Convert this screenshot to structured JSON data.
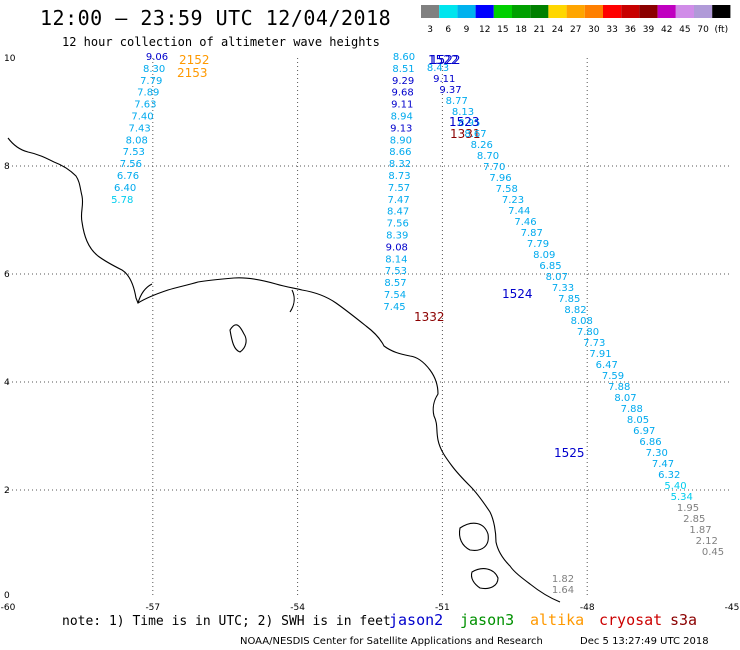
{
  "header": {
    "title": "12:00 – 23:59 UTC 12/04/2018",
    "subtitle": "12 hour collection of altimeter wave heights"
  },
  "colorbar": {
    "labels": [
      "3",
      "6",
      "9",
      "12",
      "15",
      "18",
      "21",
      "24",
      "27",
      "30",
      "33",
      "36",
      "39",
      "42",
      "45",
      "70",
      "(ft)"
    ],
    "colors": [
      "#808080",
      "#00e5ee",
      "#00b2ee",
      "#0000ff",
      "#00d000",
      "#00a000",
      "#008000",
      "#ffd700",
      "#ffa500",
      "#ff7f00",
      "#ff0000",
      "#c80000",
      "#8b0000",
      "#c000c0",
      "#d08ce8",
      "#b09ad8",
      "#000000"
    ]
  },
  "map": {
    "lon_range": [
      -60,
      -45
    ],
    "lat_range": [
      0,
      10
    ],
    "x_ticks": [
      "-60",
      "-57",
      "-54",
      "-51",
      "-48",
      "-45"
    ],
    "y_ticks": [
      "10",
      "8",
      "6",
      "4",
      "2",
      "0"
    ],
    "grid": "dotted"
  },
  "satellite_colors": {
    "jason2": "#0000cc",
    "jason3": "#009000",
    "altika": "#ff9900",
    "cryosat": "#cc0000",
    "s3a": "#8b0000"
  },
  "tracks": [
    {
      "labels": [
        {
          "text": "2152",
          "color": "#ff9900"
        },
        {
          "text": "2153",
          "color": "#ff9900"
        }
      ],
      "values": [
        {
          "v": "9.06",
          "c": "#0000cc"
        },
        {
          "v": "8.30",
          "c": "#00aaee"
        },
        {
          "v": "7.79",
          "c": "#00aaee"
        },
        {
          "v": "7.89",
          "c": "#00aaee"
        },
        {
          "v": "7.63",
          "c": "#00aaee"
        },
        {
          "v": "7.40",
          "c": "#00aaee"
        },
        {
          "v": "7.43",
          "c": "#00aaee"
        },
        {
          "v": "8.08",
          "c": "#00aaee"
        },
        {
          "v": "7.53",
          "c": "#00aaee"
        },
        {
          "v": "7.56",
          "c": "#00aaee"
        },
        {
          "v": "6.76",
          "c": "#00aaee"
        },
        {
          "v": "6.40",
          "c": "#00aaee"
        },
        {
          "v": "5.78",
          "c": "#00ccee"
        }
      ]
    },
    {
      "labels": [
        {
          "text": "1522",
          "color": "#0000cc"
        },
        {
          "text": "1331",
          "color": "#8b0000"
        },
        {
          "text": "1332",
          "color": "#8b0000"
        }
      ],
      "values": [
        {
          "v": "8.60",
          "c": "#00aaee"
        },
        {
          "v": "8.51",
          "c": "#00aaee"
        },
        {
          "v": "9.29",
          "c": "#0000cc"
        },
        {
          "v": "9.68",
          "c": "#0000cc"
        },
        {
          "v": "9.11",
          "c": "#0000cc"
        },
        {
          "v": "8.94",
          "c": "#00aaee"
        },
        {
          "v": "9.13",
          "c": "#0000cc"
        },
        {
          "v": "8.90",
          "c": "#00aaee"
        },
        {
          "v": "8.66",
          "c": "#00aaee"
        },
        {
          "v": "8.32",
          "c": "#00aaee"
        },
        {
          "v": "8.73",
          "c": "#00aaee"
        },
        {
          "v": "7.57",
          "c": "#00aaee"
        },
        {
          "v": "7.47",
          "c": "#00aaee"
        },
        {
          "v": "8.47",
          "c": "#00aaee"
        },
        {
          "v": "7.56",
          "c": "#00aaee"
        },
        {
          "v": "8.39",
          "c": "#00aaee"
        },
        {
          "v": "9.08",
          "c": "#0000cc"
        },
        {
          "v": "8.14",
          "c": "#00aaee"
        },
        {
          "v": "7.53",
          "c": "#00aaee"
        },
        {
          "v": "8.57",
          "c": "#00aaee"
        },
        {
          "v": "7.54",
          "c": "#00aaee"
        },
        {
          "v": "7.45",
          "c": "#00aaee"
        }
      ]
    },
    {
      "labels": [
        {
          "text": "1522",
          "color": "#0000cc"
        },
        {
          "text": "1523",
          "color": "#0000cc"
        },
        {
          "text": "1524",
          "color": "#0000cc"
        },
        {
          "text": "1525",
          "color": "#0000cc"
        }
      ],
      "values": [
        {
          "v": "8.43",
          "c": "#00aaee"
        },
        {
          "v": "9.11",
          "c": "#0000cc"
        },
        {
          "v": "9.37",
          "c": "#0000cc"
        },
        {
          "v": "8.77",
          "c": "#00aaee"
        },
        {
          "v": "8.13",
          "c": "#00aaee"
        },
        {
          "v": "8.95",
          "c": "#00aaee"
        },
        {
          "v": "8.67",
          "c": "#00aaee"
        },
        {
          "v": "8.26",
          "c": "#00aaee"
        },
        {
          "v": "8.70",
          "c": "#00aaee"
        },
        {
          "v": "7.70",
          "c": "#00aaee"
        },
        {
          "v": "7.96",
          "c": "#00aaee"
        },
        {
          "v": "7.58",
          "c": "#00aaee"
        },
        {
          "v": "7.23",
          "c": "#00aaee"
        },
        {
          "v": "7.44",
          "c": "#00aaee"
        },
        {
          "v": "7.46",
          "c": "#00aaee"
        },
        {
          "v": "7.87",
          "c": "#00aaee"
        },
        {
          "v": "7.79",
          "c": "#00aaee"
        },
        {
          "v": "8.09",
          "c": "#00aaee"
        },
        {
          "v": "6.85",
          "c": "#00aaee"
        },
        {
          "v": "8.07",
          "c": "#00aaee"
        },
        {
          "v": "7.33",
          "c": "#00aaee"
        },
        {
          "v": "7.85",
          "c": "#00aaee"
        },
        {
          "v": "8.82",
          "c": "#00aaee"
        },
        {
          "v": "8.08",
          "c": "#00aaee"
        },
        {
          "v": "7.80",
          "c": "#00aaee"
        },
        {
          "v": "7.73",
          "c": "#00aaee"
        },
        {
          "v": "7.91",
          "c": "#00aaee"
        },
        {
          "v": "6.47",
          "c": "#00aaee"
        },
        {
          "v": "7.59",
          "c": "#00aaee"
        },
        {
          "v": "7.88",
          "c": "#00aaee"
        },
        {
          "v": "8.07",
          "c": "#00aaee"
        },
        {
          "v": "7.88",
          "c": "#00aaee"
        },
        {
          "v": "8.05",
          "c": "#00aaee"
        },
        {
          "v": "6.97",
          "c": "#00aaee"
        },
        {
          "v": "6.86",
          "c": "#00aaee"
        },
        {
          "v": "7.30",
          "c": "#00aaee"
        },
        {
          "v": "7.47",
          "c": "#00aaee"
        },
        {
          "v": "6.32",
          "c": "#00aaee"
        },
        {
          "v": "5.40",
          "c": "#00ccee"
        },
        {
          "v": "5.34",
          "c": "#00ccee"
        },
        {
          "v": "1.95",
          "c": "#808080"
        },
        {
          "v": "2.85",
          "c": "#808080"
        },
        {
          "v": "1.87",
          "c": "#808080"
        },
        {
          "v": "2.12",
          "c": "#808080"
        },
        {
          "v": "0.45",
          "c": "#808080"
        },
        {
          "v": "1.82",
          "c": "#808080"
        },
        {
          "v": "1.64",
          "c": "#808080"
        }
      ]
    }
  ],
  "footer": {
    "note": "note: 1) Time is in UTC; 2) SWH is in feet",
    "legend": [
      {
        "name": "jason2",
        "color": "#0000cc"
      },
      {
        "name": "jason3",
        "color": "#009000"
      },
      {
        "name": "altika",
        "color": "#ff9900"
      },
      {
        "name": "cryosat",
        "color": "#cc0000"
      },
      {
        "name": "s3a",
        "color": "#8b0000"
      }
    ],
    "credit": "NOAA/NESDIS Center for Satellite Applications and Research",
    "timestamp": "Dec  5 13:27:49 UTC 2018"
  }
}
